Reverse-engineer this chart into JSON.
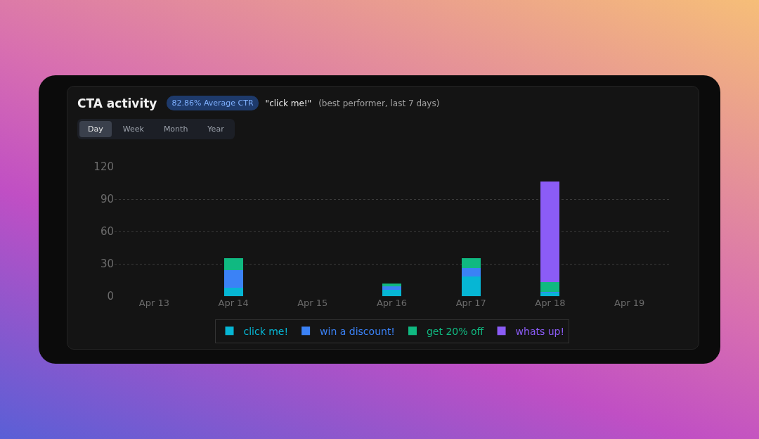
{
  "chart_data": {
    "type": "bar",
    "title": "CTA activity",
    "annotations": [
      "82.86% Average CTR",
      "\"click me!\"",
      "(best performer, last 7 days)",
      "Day",
      "Week",
      "Month",
      "Year"
    ],
    "categories": [
      "Apr 13",
      "Apr 14",
      "Apr 15",
      "Apr 16",
      "Apr 17",
      "Apr 18",
      "Apr 19"
    ],
    "stacked": true,
    "series": [
      {
        "name": "click me!",
        "color": "#06b6d4",
        "values": [
          0,
          8,
          0,
          6,
          18,
          3,
          0
        ]
      },
      {
        "name": "win a discount!",
        "color": "#3b82f6",
        "values": [
          0,
          16,
          0,
          3,
          8,
          1,
          0
        ]
      },
      {
        "name": "get 20% off",
        "color": "#10b981",
        "values": [
          0,
          11,
          0,
          3,
          9,
          9,
          0
        ]
      },
      {
        "name": "whats up!",
        "color": "#8b5cf6",
        "values": [
          0,
          0,
          0,
          0,
          0,
          93,
          0
        ]
      }
    ],
    "ylim": [
      0,
      120
    ],
    "yticks": [
      0,
      30,
      60,
      90,
      120
    ],
    "grid": "y",
    "legend": "bottom"
  }
}
